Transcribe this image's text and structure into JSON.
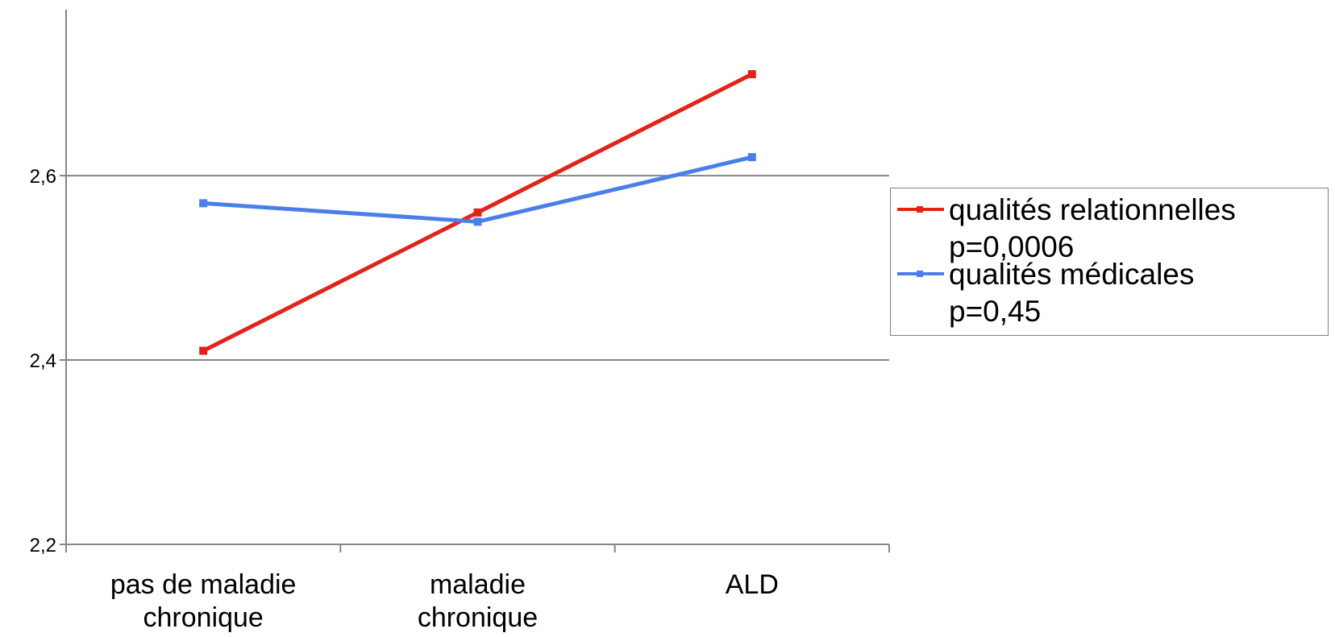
{
  "chart_data": {
    "type": "line",
    "categories": [
      [
        "pas de maladie",
        "chronique"
      ],
      [
        "maladie",
        "chronique"
      ],
      [
        "ALD"
      ]
    ],
    "series": [
      {
        "name": "qualités relationnelles",
        "note": "p=0,0006",
        "color": "#e2231a",
        "values": [
          2.41,
          2.56,
          2.71
        ]
      },
      {
        "name": "qualités médicales",
        "note": "p=0,45",
        "color": "#4a7fe8",
        "values": [
          2.57,
          2.55,
          2.62
        ]
      }
    ],
    "y_ticks": [
      "2,2",
      "2,4",
      "2,6"
    ],
    "ylim": [
      2.2,
      2.78
    ],
    "grid": true,
    "legend_position": "right"
  }
}
